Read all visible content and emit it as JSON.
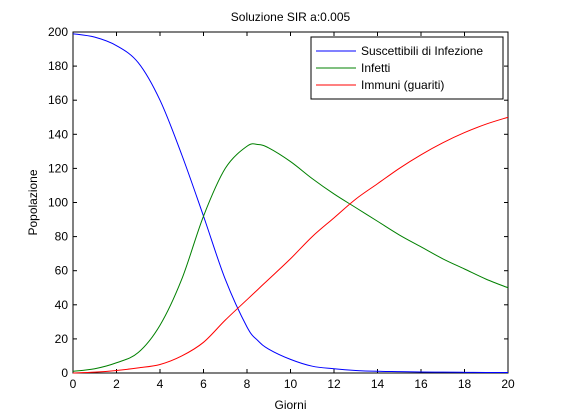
{
  "chart_data": {
    "type": "line",
    "title": "Soluzione SIR a:0.005",
    "xlabel": "Giorni",
    "ylabel": "Popolazione",
    "xlim": [
      0,
      20
    ],
    "ylim": [
      0,
      200
    ],
    "xticks": [
      0,
      2,
      4,
      6,
      8,
      10,
      12,
      14,
      16,
      18,
      20
    ],
    "yticks": [
      0,
      20,
      40,
      60,
      80,
      100,
      120,
      140,
      160,
      180,
      200
    ],
    "grid": false,
    "legend_position": "top-right",
    "x": [
      0,
      1,
      2,
      3,
      4,
      5,
      6,
      7,
      8,
      8.5,
      9,
      10,
      11,
      12,
      13,
      14,
      15,
      16,
      17,
      18,
      19,
      20
    ],
    "series": [
      {
        "name": "Suscettibili di Infezione",
        "color": "#0000ff",
        "values": [
          199,
          197,
          192,
          182,
          160,
          128,
          92,
          55,
          27,
          19,
          14,
          8,
          4,
          2.5,
          1.5,
          1,
          0.8,
          0.6,
          0.5,
          0.4,
          0.3,
          0.3
        ]
      },
      {
        "name": "Infetti",
        "color": "#008000",
        "values": [
          1,
          2.5,
          6,
          12,
          28,
          55,
          92,
          120,
          133,
          134,
          132,
          124,
          114,
          105,
          97,
          89,
          81,
          74,
          67,
          61,
          55,
          50
        ]
      },
      {
        "name": "Immuni (guariti)",
        "color": "#ff0000",
        "values": [
          0,
          0.5,
          1.5,
          3,
          5,
          10,
          18,
          31,
          43,
          49,
          55,
          67,
          80,
          91,
          102,
          111,
          120,
          128,
          135,
          141,
          146,
          150
        ]
      }
    ]
  }
}
